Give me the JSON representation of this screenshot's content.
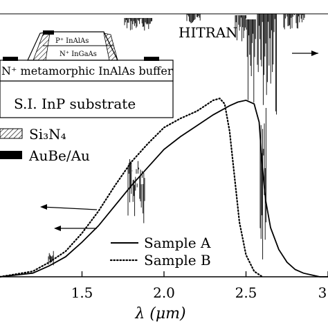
{
  "chart_data": {
    "type": "line",
    "title": "",
    "xlabel": "λ (μm)",
    "ylabel": "",
    "xlim": [
      1.0,
      3.0
    ],
    "x_ticks": [
      1.5,
      2.0,
      2.5,
      3.0
    ],
    "x_tick_labels": [
      "1.5",
      "2.0",
      "2.5",
      "3"
    ],
    "ylim": [
      0.0,
      1.0
    ],
    "grid": false,
    "legend_position": "lower-right",
    "series": [
      {
        "name": "Sample A",
        "style": "solid",
        "x": [
          1.0,
          1.2,
          1.3,
          1.4,
          1.5,
          1.6,
          1.7,
          1.8,
          1.9,
          2.0,
          2.1,
          2.2,
          2.3,
          2.4,
          2.45,
          2.5,
          2.55,
          2.58,
          2.6,
          2.62,
          2.65,
          2.7,
          2.75,
          2.8,
          2.85,
          2.9,
          2.95,
          3.0
        ],
        "y": [
          0.0,
          0.02,
          0.06,
          0.11,
          0.19,
          0.28,
          0.39,
          0.5,
          0.6,
          0.7,
          0.77,
          0.83,
          0.89,
          0.94,
          0.96,
          0.97,
          0.95,
          0.85,
          0.6,
          0.42,
          0.27,
          0.15,
          0.08,
          0.04,
          0.02,
          0.01,
          0.0,
          0.0
        ]
      },
      {
        "name": "Sample B",
        "style": "dotted",
        "x": [
          1.0,
          1.2,
          1.3,
          1.4,
          1.5,
          1.6,
          1.7,
          1.8,
          1.9,
          2.0,
          2.1,
          2.2,
          2.25,
          2.3,
          2.34,
          2.37,
          2.4,
          2.43,
          2.46,
          2.5,
          2.55,
          2.6
        ],
        "y": [
          0.0,
          0.03,
          0.08,
          0.14,
          0.24,
          0.36,
          0.5,
          0.63,
          0.73,
          0.82,
          0.87,
          0.91,
          0.94,
          0.97,
          0.98,
          0.95,
          0.8,
          0.55,
          0.3,
          0.12,
          0.03,
          0.0
        ]
      }
    ],
    "annotations": [
      "HITRAN"
    ],
    "inset": {
      "layers": [
        "N⁺ metamorphic InAlAs buffer",
        "S.I. InP substrate"
      ],
      "mesa_labels": [
        "P⁺ InAlAs",
        "N⁺ InGaAs"
      ],
      "materials": [
        "Si₃N₄",
        "AuBe/Au"
      ]
    }
  }
}
